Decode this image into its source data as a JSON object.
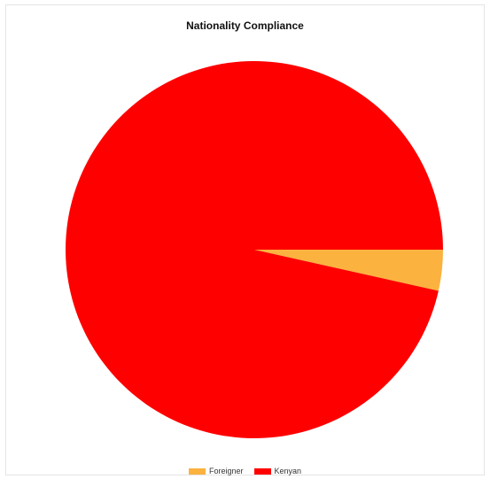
{
  "chart_data": {
    "type": "pie",
    "title": "Nationality Compliance",
    "slices": [
      {
        "label": "Foreigner",
        "value": 3.5,
        "color": "#FBB23E"
      },
      {
        "label": "Kenyan",
        "value": 96.5,
        "color": "#FF0000"
      }
    ],
    "start_angle_deg": 0,
    "direction": "clockwise",
    "legend_position": "bottom"
  }
}
